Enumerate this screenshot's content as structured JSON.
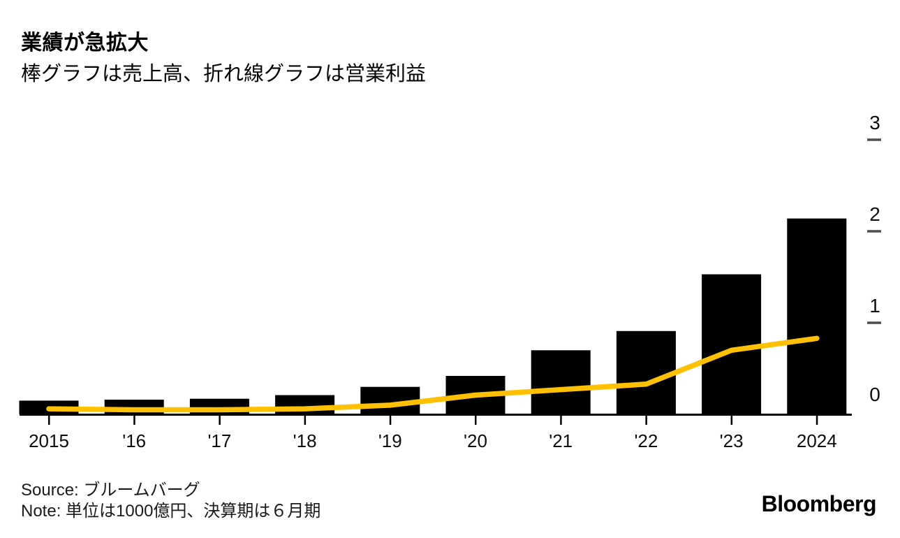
{
  "header": {
    "title": "業績が急拡大",
    "subtitle": "棒グラフは売上高、折れ線グラフは営業利益"
  },
  "footer": {
    "source": "Source: ブルームバーグ",
    "note": "Note: 単位は1000億円、決算期は６月期",
    "brand": "Bloomberg"
  },
  "colors": {
    "background": "#ffffff",
    "bar": "#000000",
    "line": "#FFC000",
    "axis": "#000000",
    "tick_dash": "#4d4d4d",
    "label_text": "#0d0d0d"
  },
  "chart_data": {
    "type": "bar+line",
    "title": "業績が急拡大",
    "subtitle": "棒グラフは売上高、折れ線グラフは営業利益",
    "categories": [
      "2015",
      "'16",
      "'17",
      "'18",
      "'19",
      "'20",
      "'21",
      "'22",
      "'23",
      "2024"
    ],
    "series": [
      {
        "name": "売上高",
        "type": "bar",
        "values": [
          0.15,
          0.16,
          0.17,
          0.21,
          0.3,
          0.42,
          0.7,
          0.91,
          1.53,
          2.14
        ]
      },
      {
        "name": "営業利益",
        "type": "line",
        "values": [
          0.06,
          0.05,
          0.05,
          0.06,
          0.1,
          0.21,
          0.27,
          0.33,
          0.7,
          0.83
        ]
      }
    ],
    "unit_note": "単位は1000億円",
    "fiscal_note": "決算期は６月期",
    "yticks": [
      0,
      1,
      2,
      3
    ],
    "ytick_labels": [
      "0",
      "1",
      "2",
      "3"
    ],
    "ylim": [
      0,
      3.3
    ],
    "y_axis_side": "right",
    "grid": false,
    "legend_position": "none"
  }
}
